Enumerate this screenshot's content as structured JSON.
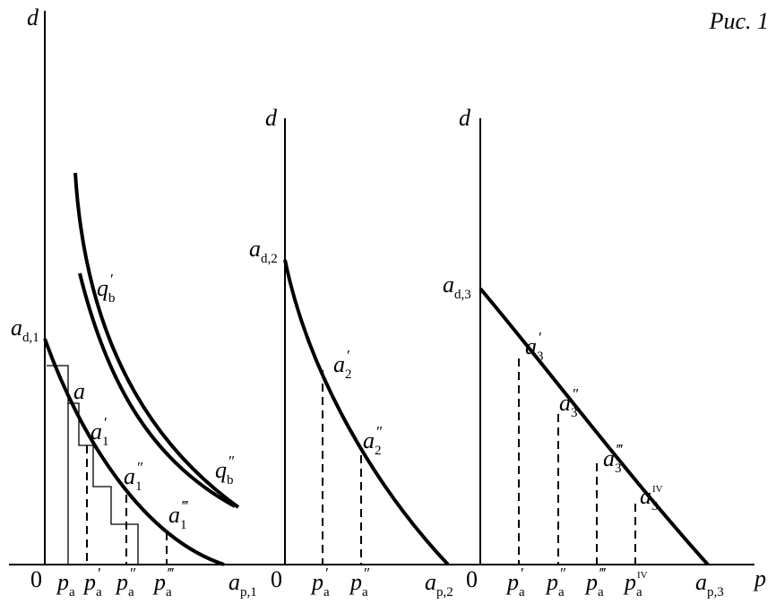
{
  "figure_label": "Рис. 1",
  "x_axis_label": "p",
  "panels": [
    {
      "y_axis_label": "d",
      "origin_label": "0",
      "intercept_d": {
        "base": "a",
        "sub": "d,1"
      },
      "intercept_p": {
        "base": "a",
        "sub": "p,1"
      },
      "point_labels": [
        {
          "base": "a"
        },
        {
          "base": "a",
          "sup": "′",
          "sub": "1"
        },
        {
          "base": "a",
          "sup": "″",
          "sub": "1"
        },
        {
          "base": "a",
          "sup": "‴",
          "sub": "1"
        }
      ],
      "curve_labels": [
        {
          "base": "q",
          "sup": "′",
          "sub": "b"
        },
        {
          "base": "q",
          "sup": "″",
          "sub": "b"
        }
      ],
      "x_labels": [
        {
          "base": "p",
          "sub": "a"
        },
        {
          "base": "p",
          "sup": "′",
          "sub": "a"
        },
        {
          "base": "p",
          "sup": "″",
          "sub": "a"
        },
        {
          "base": "p",
          "sup": "‴",
          "sub": "a"
        }
      ]
    },
    {
      "y_axis_label": "d",
      "origin_label": "0",
      "intercept_d": {
        "base": "a",
        "sub": "d,2"
      },
      "intercept_p": {
        "base": "a",
        "sub": "p,2"
      },
      "point_labels": [
        {
          "base": "a",
          "sup": "′",
          "sub": "2"
        },
        {
          "base": "a",
          "sup": "″",
          "sub": "2"
        }
      ],
      "x_labels": [
        {
          "base": "p",
          "sup": "′",
          "sub": "a"
        },
        {
          "base": "p",
          "sup": "″",
          "sub": "a"
        }
      ]
    },
    {
      "y_axis_label": "d",
      "origin_label": "0",
      "intercept_d": {
        "base": "a",
        "sub": "d,3"
      },
      "intercept_p": {
        "base": "a",
        "sub": "p,3"
      },
      "point_labels": [
        {
          "base": "a",
          "sup": "′",
          "sub": "3"
        },
        {
          "base": "a",
          "sup": "″",
          "sub": "3"
        },
        {
          "base": "a",
          "sup": "‴",
          "sub": "3"
        },
        {
          "base": "a",
          "sup": "IV",
          "sub": "3"
        }
      ],
      "x_labels": [
        {
          "base": "p",
          "sup": "′",
          "sub": "a"
        },
        {
          "base": "p",
          "sup": "″",
          "sub": "a"
        },
        {
          "base": "p",
          "sup": "‴",
          "sub": "a"
        },
        {
          "base": "p",
          "sup": "IV",
          "sub": "a"
        }
      ]
    }
  ]
}
